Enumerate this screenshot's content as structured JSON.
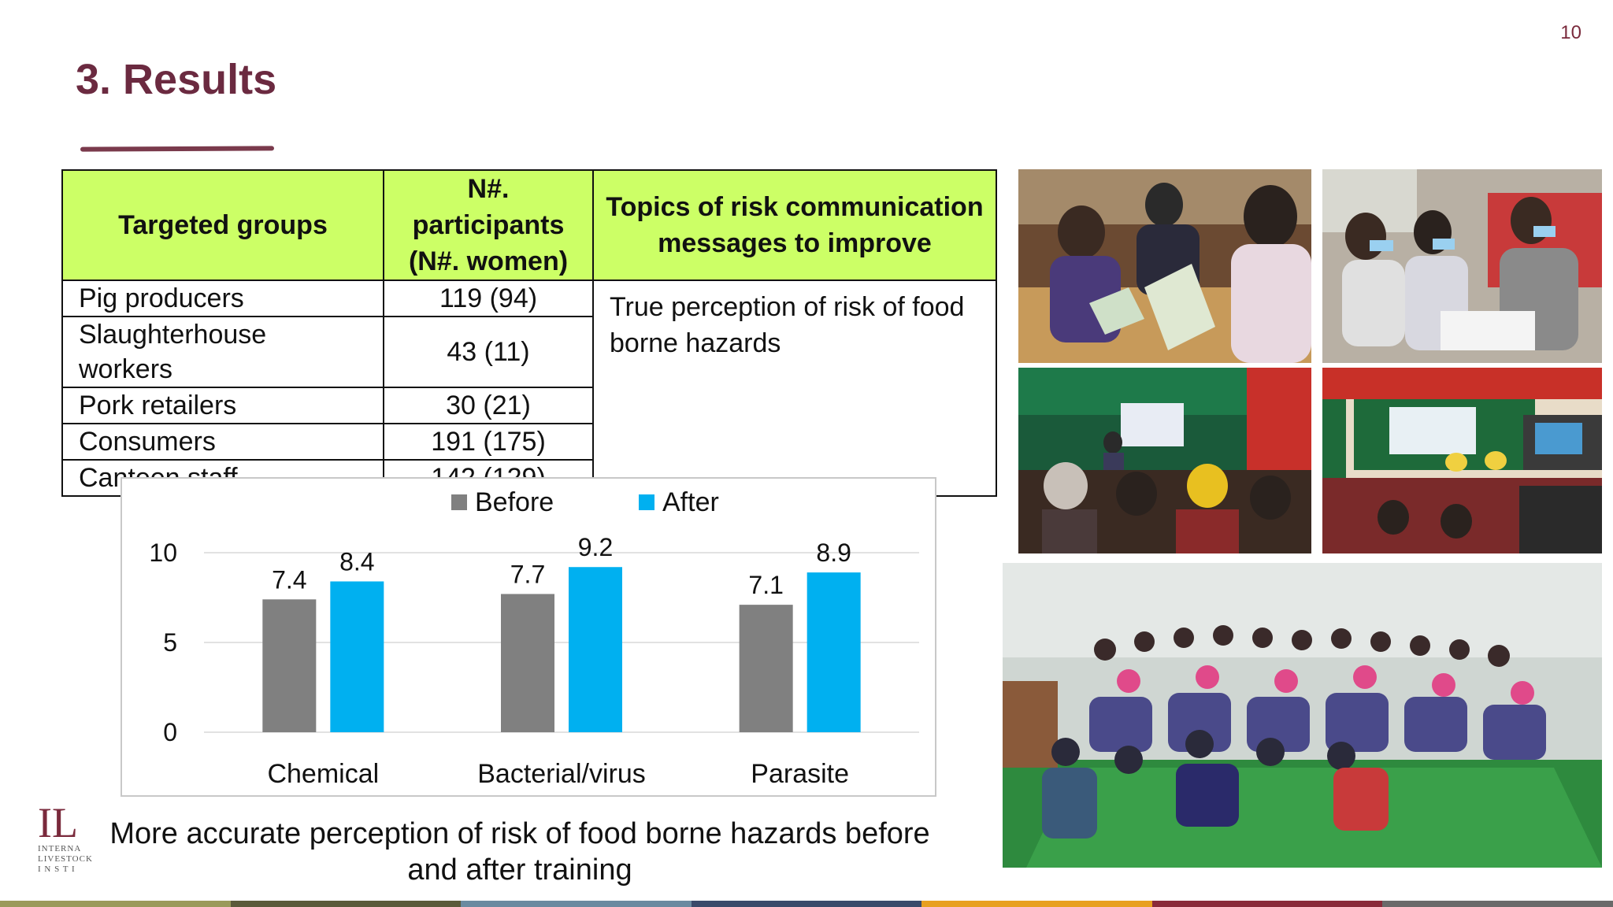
{
  "slide": {
    "page_number": "10",
    "title": "3. Results",
    "caption": "More accurate perception of risk of food borne hazards before and after training",
    "logo_mark": "IL",
    "logo_lines": [
      "INTERNA",
      "LIVESTOCK",
      "I N S T I"
    ]
  },
  "table": {
    "headers": [
      "Targeted groups",
      "N#. participants (N#. women)",
      "Topics of risk communication messages to improve"
    ],
    "rows": [
      {
        "group": "Pig producers",
        "participants": "119 (94)"
      },
      {
        "group": "Slaughterhouse workers",
        "participants": "43 (11)"
      },
      {
        "group": "Pork retailers",
        "participants": "30 (21)"
      },
      {
        "group": "Consumers",
        "participants": "191 (175)"
      },
      {
        "group": "Canteen staff",
        "participants": "142 (129)"
      }
    ],
    "topic": "True perception of risk of food borne hazards"
  },
  "chart_data": {
    "type": "bar",
    "categories": [
      "Chemical",
      "Bacterial/virus",
      "Parasite"
    ],
    "series": [
      {
        "name": "Before",
        "values": [
          7.4,
          7.7,
          7.1
        ],
        "color": "#808080"
      },
      {
        "name": "After",
        "values": [
          8.4,
          9.2,
          8.9
        ],
        "color": "#00b0f0"
      }
    ],
    "y_ticks": [
      0,
      5,
      10
    ],
    "ylim": [
      0,
      10
    ],
    "grid": true,
    "legend": "top-center",
    "title": "",
    "xlabel": "",
    "ylabel": ""
  },
  "colors": {
    "title": "#6b2a40",
    "table_header_bg": "#ccff66",
    "before": "#808080",
    "after": "#00b0f0",
    "bottom_bar": [
      "#9a9a5a",
      "#5a5a3a",
      "#6a8aa0",
      "#3a4a6a",
      "#e8a020",
      "#8a2a3a",
      "#6a6a6a"
    ]
  },
  "photos": [
    "photo-workshop-reading",
    "photo-masked-participants",
    "photo-presentation-hall",
    "photo-stage-hall",
    "photo-group-photo"
  ]
}
